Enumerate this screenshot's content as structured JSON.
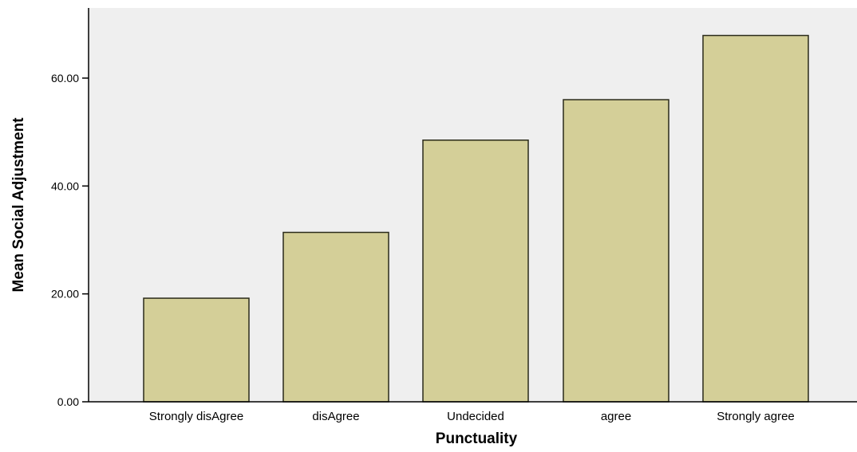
{
  "chart_data": {
    "type": "bar",
    "categories": [
      "Strongly disAgree",
      "disAgree",
      "Undecided",
      "agree",
      "Strongly agree"
    ],
    "values": [
      19.2,
      31.4,
      48.5,
      56.0,
      67.9
    ],
    "xlabel": "Punctuality",
    "ylabel": "Mean Social Adjustment",
    "ylim": [
      0,
      73
    ],
    "yticks": [
      0,
      20,
      40,
      60
    ],
    "ytick_labels": [
      "0.00",
      "20.00",
      "40.00",
      "60.00"
    ],
    "grid": false,
    "legend": "none"
  },
  "colors": {
    "bar_fill": "#d4cf98",
    "bar_stroke": "#2a2a1a",
    "plot_background": "#efefef",
    "axis": "#000000"
  }
}
